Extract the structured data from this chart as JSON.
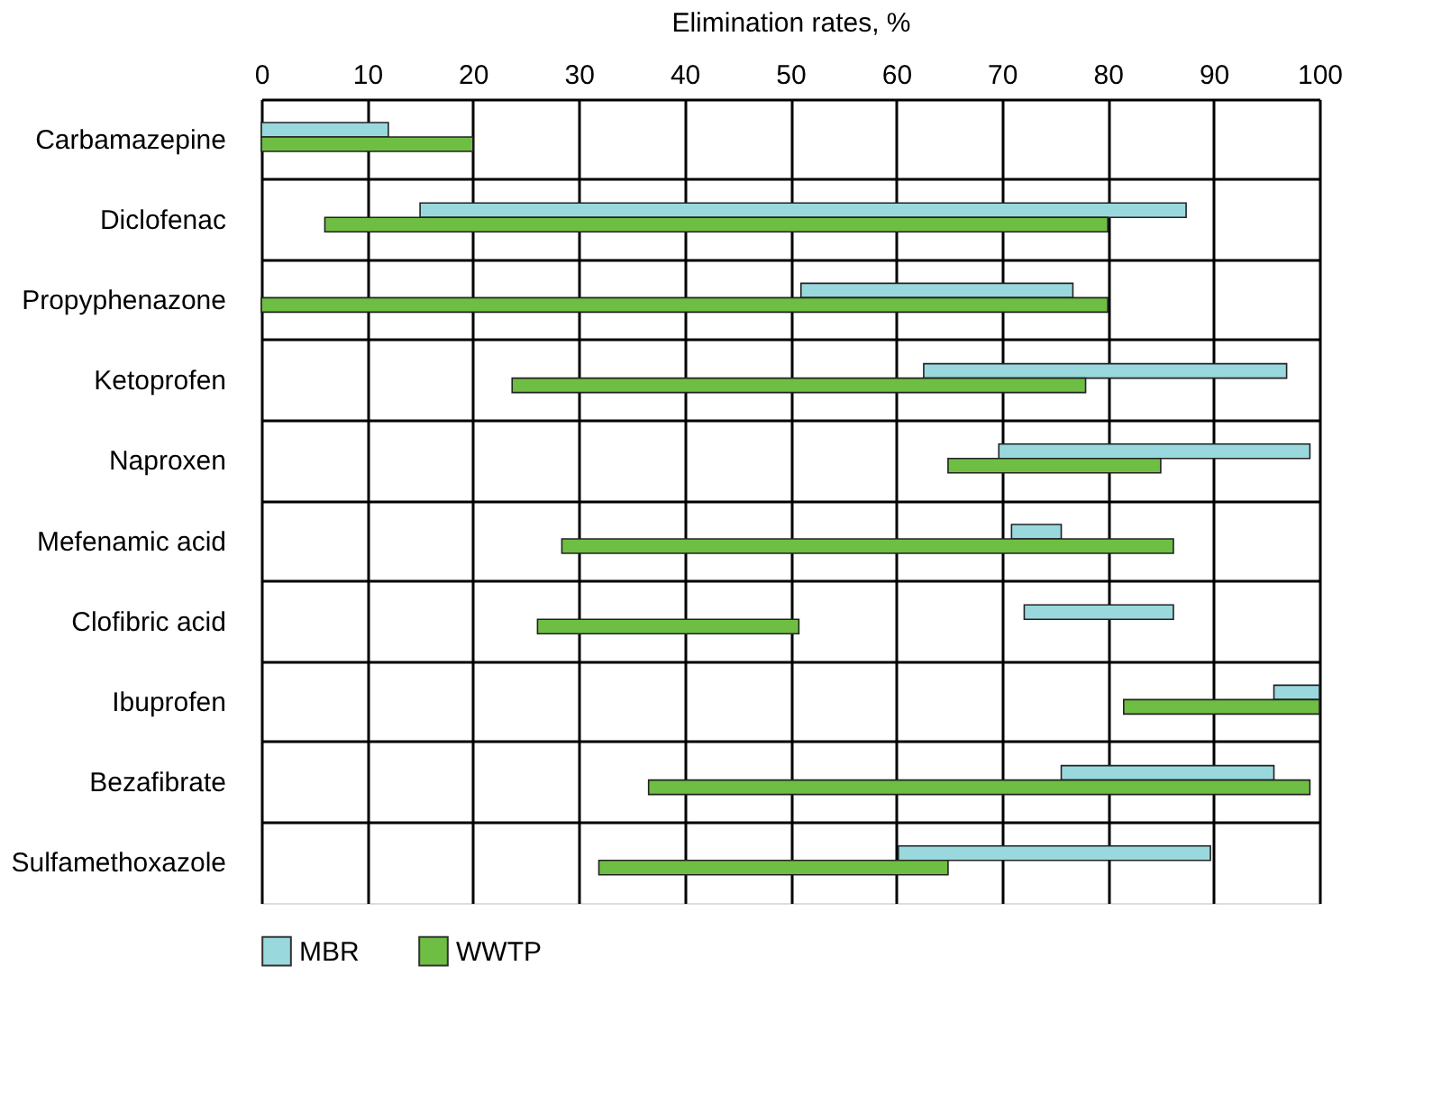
{
  "chart_data": {
    "type": "bar",
    "orientation": "horizontal",
    "xlabel": "Elimination rates, %",
    "categories": [
      "Carbamazepine",
      "Diclofenac",
      "Propyphenazone",
      "Ketoprofen",
      "Naproxen",
      "Mefenamic acid",
      "Clofibric acid",
      "Ibuprofen",
      "Bezafibrate",
      "Sulfamethoxazole"
    ],
    "series": [
      {
        "name": "MBR",
        "color": "#99d9de",
        "base": [
          0,
          15,
          51,
          62.6,
          69.7,
          70.9,
          72.1,
          95.7,
          75.6,
          60.2
        ],
        "values": [
          12,
          72.4,
          25.7,
          34.3,
          29.4,
          4.7,
          14.1,
          4.3,
          20.1,
          29.5
        ]
      },
      {
        "name": "WWTP",
        "color": "#6fbe44",
        "base": [
          0,
          6,
          0,
          23.7,
          64.9,
          28.4,
          26.1,
          81.5,
          36.6,
          31.9
        ],
        "values": [
          20,
          74,
          80,
          54.2,
          20.1,
          57.8,
          24.7,
          18.5,
          62.5,
          33
        ]
      }
    ],
    "xlim": [
      0,
      100
    ],
    "xticks": [
      0,
      10,
      20,
      30,
      40,
      50,
      60,
      70,
      80,
      90,
      100
    ],
    "grid": true,
    "legend": "bottom"
  }
}
